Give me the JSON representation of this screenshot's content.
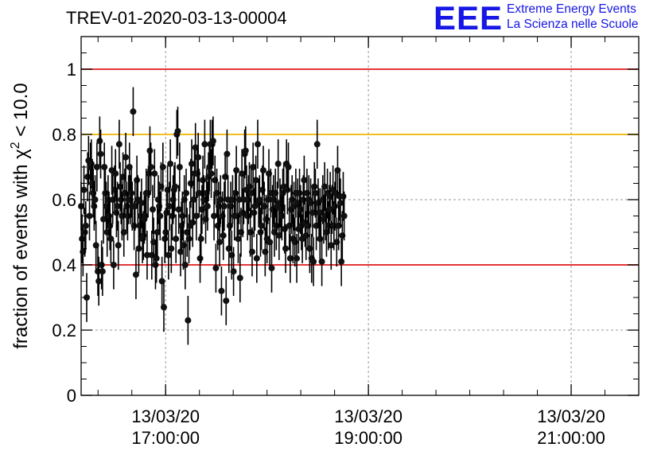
{
  "title": "TREV-01-2020-03-13-00004",
  "logo": {
    "mark": "EEE",
    "line1": "Extreme Energy Events",
    "line2": "La Scienza nelle Scuole",
    "color": "#1616e6"
  },
  "chart_data": {
    "type": "scatter",
    "ylabel_prefix": "fraction of events with ",
    "ylabel_symbol": "χ",
    "ylabel_sup": "2",
    "ylabel_suffix": " < 10.0",
    "xlabel": "",
    "ylim": [
      0,
      1.1
    ],
    "xlim": [
      "2020-03-13 16:10:00",
      "2020-03-13 21:40:00"
    ],
    "grid": true,
    "yticks": [
      {
        "value": 0,
        "label": "0"
      },
      {
        "value": 0.2,
        "label": "0.2"
      },
      {
        "value": 0.4,
        "label": "0.4"
      },
      {
        "value": 0.6,
        "label": "0.6"
      },
      {
        "value": 0.8,
        "label": "0.8"
      },
      {
        "value": 1,
        "label": "1"
      }
    ],
    "xticks": [
      {
        "time": "2020-03-13 17:00:00",
        "date": "13/03/20",
        "clock": "17:00:00"
      },
      {
        "time": "2020-03-13 19:00:00",
        "date": "13/03/20",
        "clock": "19:00:00"
      },
      {
        "time": "2020-03-13 21:00:00",
        "date": "13/03/20",
        "clock": "21:00:00"
      }
    ],
    "reference_lines": [
      {
        "y": 1.0,
        "color": "#e01818"
      },
      {
        "y": 0.8,
        "color": "#f0b400"
      },
      {
        "y": 0.4,
        "color": "#e01818"
      }
    ],
    "error_bar": 0.075,
    "series": [
      {
        "x_start": "2020-03-13 16:10:00",
        "x_step_minutes": 0.55,
        "values": [
          0.58,
          0.48,
          0.44,
          0.63,
          0.5,
          0.52,
          0.3,
          0.67,
          0.72,
          0.55,
          0.7,
          0.71,
          0.65,
          0.62,
          0.58,
          0.6,
          0.46,
          0.7,
          0.38,
          0.35,
          0.78,
          0.74,
          0.4,
          0.38,
          0.54,
          0.7,
          0.62,
          0.58,
          0.5,
          0.6,
          0.55,
          0.52,
          0.48,
          0.69,
          0.6,
          0.4,
          0.63,
          0.68,
          0.56,
          0.58,
          0.46,
          0.77,
          0.64,
          0.6,
          0.55,
          0.67,
          0.5,
          0.62,
          0.73,
          0.58,
          0.55,
          0.6,
          0.7,
          0.6,
          0.62,
          0.58,
          0.87,
          0.52,
          0.58,
          0.37,
          0.66,
          0.6,
          0.45,
          0.52,
          0.55,
          0.59,
          0.48,
          0.49,
          0.54,
          0.55,
          0.62,
          0.43,
          0.62,
          0.68,
          0.75,
          0.7,
          0.43,
          0.57,
          0.47,
          0.68,
          0.4,
          0.42,
          0.5,
          0.6,
          0.58,
          0.55,
          0.64,
          0.35,
          0.7,
          0.27,
          0.48,
          0.5,
          0.56,
          0.63,
          0.43,
          0.58,
          0.71,
          0.45,
          0.55,
          0.6,
          0.63,
          0.64,
          0.48,
          0.8,
          0.81,
          0.57,
          0.7,
          0.44,
          0.52,
          0.55,
          0.46,
          0.6,
          0.4,
          0.62,
          0.5,
          0.23,
          0.48,
          0.52,
          0.65,
          0.71,
          0.53,
          0.6,
          0.68,
          0.76,
          0.55,
          0.68,
          0.73,
          0.62,
          0.42,
          0.48,
          0.57,
          0.66,
          0.6,
          0.77,
          0.54,
          0.62,
          0.58,
          0.67,
          0.7,
          0.77,
          0.68,
          0.77,
          0.78,
          0.55,
          0.66,
          0.39,
          0.62,
          0.52,
          0.58,
          0.47,
          0.6,
          0.32,
          0.55,
          0.49,
          0.58,
          0.67,
          0.29,
          0.74,
          0.6,
          0.45,
          0.52,
          0.58,
          0.43,
          0.6,
          0.38,
          0.55,
          0.62,
          0.69,
          0.55,
          0.48,
          0.6,
          0.36,
          0.5,
          0.68,
          0.56,
          0.6,
          0.74,
          0.75,
          0.63,
          0.55,
          0.6,
          0.64,
          0.5,
          0.62,
          0.44,
          0.7,
          0.56,
          0.58,
          0.66,
          0.42,
          0.77,
          0.59,
          0.6,
          0.5,
          0.52,
          0.63,
          0.69,
          0.58,
          0.44,
          0.54,
          0.48,
          0.6,
          0.68,
          0.47,
          0.62,
          0.39,
          0.57,
          0.6,
          0.5,
          0.62,
          0.52,
          0.58,
          0.71,
          0.49,
          0.59,
          0.57,
          0.55,
          0.62,
          0.64,
          0.51,
          0.45,
          0.71,
          0.63,
          0.7,
          0.52,
          0.42,
          0.57,
          0.6,
          0.48,
          0.58,
          0.47,
          0.62,
          0.42,
          0.59,
          0.51,
          0.62,
          0.57,
          0.52,
          0.48,
          0.6,
          0.66,
          0.53,
          0.49,
          0.62,
          0.52,
          0.6,
          0.45,
          0.59,
          0.42,
          0.56,
          0.41,
          0.64,
          0.62,
          0.52,
          0.77,
          0.59,
          0.56,
          0.48,
          0.56,
          0.41,
          0.6,
          0.54,
          0.64,
          0.55,
          0.5,
          0.62,
          0.52,
          0.57,
          0.61,
          0.46,
          0.57,
          0.63,
          0.52,
          0.58,
          0.62,
          0.47,
          0.69,
          0.52,
          0.61,
          0.59,
          0.41,
          0.49,
          0.61,
          0.55
        ]
      }
    ]
  }
}
